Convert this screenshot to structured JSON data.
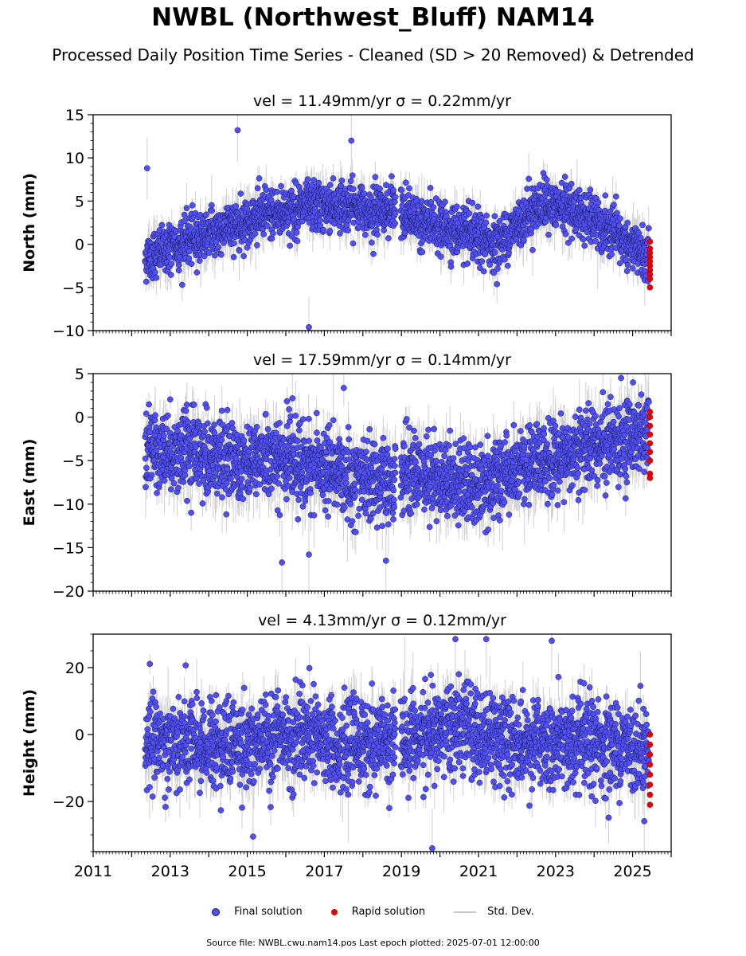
{
  "title": "NWBL (Northwest_Bluff) NAM14",
  "subtitle": "Processed Daily Position Time Series - Cleaned (SD > 20 Removed) & Detrended",
  "colors": {
    "final": "#4f4ff5",
    "final_edge": "#1a1a4a",
    "rapid": "#e80000",
    "stddev": "#bdbdbd"
  },
  "legend": {
    "final": "Final solution",
    "rapid": "Rapid solution",
    "stddev": "Std. Dev."
  },
  "footer": "Source file: NWBL.cwu.nam14.pos  Last epoch plotted: 2025-07-01 12:00:00",
  "chart_data": [
    {
      "type": "scatter",
      "panel": "north",
      "subtitle": "vel = 11.49mm/yr   σ = 0.22mm/yr",
      "ylabel": "North (mm)",
      "xlim": [
        2011,
        2026
      ],
      "ylim": [
        -10,
        15
      ],
      "yticks": [
        -10,
        -5,
        0,
        5,
        10,
        15
      ],
      "xticks": [
        2011,
        2013,
        2015,
        2017,
        2019,
        2021,
        2023,
        2025
      ],
      "series": [
        {
          "name": "Final solution",
          "x_start": 2012.35,
          "x_end": 2025.42,
          "gap": [
            2018.85,
            2018.98
          ],
          "trend": [
            [
              2012.35,
              -1.5
            ],
            [
              2013.5,
              0.5
            ],
            [
              2015.5,
              3.5
            ],
            [
              2017.0,
              4.5
            ],
            [
              2018.8,
              4.0
            ],
            [
              2019.0,
              3.5
            ],
            [
              2020.0,
              2.0
            ],
            [
              2021.5,
              0.0
            ],
            [
              2022.5,
              4.5
            ],
            [
              2023.5,
              4.0
            ],
            [
              2025.4,
              -1.5
            ]
          ],
          "scatter_sd": 1.4,
          "err_sd": 1.2,
          "outliers": [
            [
              2014.75,
              13.2
            ],
            [
              2016.6,
              -9.6
            ],
            [
              2017.7,
              12.0
            ],
            [
              2012.4,
              8.8
            ]
          ]
        },
        {
          "name": "Rapid solution",
          "x": 2025.45,
          "values": [
            0.3,
            -0.5,
            -1.0,
            -1.5,
            -2.0,
            -2.5,
            -3.0,
            -3.5,
            -4.0,
            -5.0
          ]
        }
      ]
    },
    {
      "type": "scatter",
      "panel": "east",
      "subtitle": "vel = 17.59mm/yr   σ = 0.14mm/yr",
      "ylabel": "East (mm)",
      "xlim": [
        2011,
        2026
      ],
      "ylim": [
        -20,
        5
      ],
      "yticks": [
        -20,
        -15,
        -10,
        -5,
        0,
        5
      ],
      "xticks": [
        2011,
        2013,
        2015,
        2017,
        2019,
        2021,
        2023,
        2025
      ],
      "series": [
        {
          "name": "Final solution",
          "x_start": 2012.35,
          "x_end": 2025.42,
          "gap": [
            2018.85,
            2018.98
          ],
          "trend": [
            [
              2012.35,
              -3.5
            ],
            [
              2014.0,
              -4.5
            ],
            [
              2016.0,
              -5.0
            ],
            [
              2017.5,
              -6.5
            ],
            [
              2018.8,
              -8.0
            ],
            [
              2019.0,
              -6.0
            ],
            [
              2020.0,
              -7.0
            ],
            [
              2021.0,
              -8.0
            ],
            [
              2022.5,
              -5.5
            ],
            [
              2024.0,
              -3.0
            ],
            [
              2025.4,
              -2.0
            ]
          ],
          "scatter_sd": 2.3,
          "err_sd": 1.6,
          "outliers": [
            [
              2015.9,
              -16.7
            ],
            [
              2016.6,
              -15.8
            ],
            [
              2018.6,
              -16.5
            ],
            [
              2024.7,
              4.5
            ]
          ]
        },
        {
          "name": "Rapid solution",
          "x": 2025.45,
          "values": [
            0.6,
            0.0,
            -1.0,
            -2.0,
            -3.0,
            -4.0,
            -5.0,
            -6.5,
            -7.0
          ]
        }
      ]
    },
    {
      "type": "scatter",
      "panel": "height",
      "subtitle": "vel = 4.13mm/yr   σ = 0.12mm/yr",
      "ylabel": "Height (mm)",
      "xlim": [
        2011,
        2026
      ],
      "ylim": [
        -35,
        30
      ],
      "yticks": [
        -20,
        0,
        20
      ],
      "xticks": [
        2011,
        2013,
        2015,
        2017,
        2019,
        2021,
        2023,
        2025
      ],
      "xticklabels": [
        "2011",
        "2013",
        "2015",
        "2017",
        "2019",
        "2021",
        "2023",
        "2025"
      ],
      "series": [
        {
          "name": "Final solution",
          "x_start": 2012.35,
          "x_end": 2025.42,
          "gap": [
            2018.85,
            2018.98
          ],
          "trend": [
            [
              2012.35,
              -2.0
            ],
            [
              2014.0,
              -3.0
            ],
            [
              2016.0,
              -1.0
            ],
            [
              2018.0,
              -3.0
            ],
            [
              2019.0,
              -2.0
            ],
            [
              2020.5,
              2.0
            ],
            [
              2022.0,
              -2.0
            ],
            [
              2024.0,
              -3.0
            ],
            [
              2025.4,
              -4.0
            ]
          ],
          "scatter_sd": 6.5,
          "err_sd": 4.0,
          "outliers": [
            [
              2019.8,
              -34.0
            ],
            [
              2020.4,
              28.5
            ],
            [
              2021.2,
              28.5
            ],
            [
              2022.9,
              28.0
            ],
            [
              2015.15,
              -30.5
            ]
          ]
        },
        {
          "name": "Rapid solution",
          "x": 2025.45,
          "values": [
            0.0,
            -3.0,
            -6.0,
            -9.0,
            -12.0,
            -15.0,
            -18.0,
            -21.0
          ]
        }
      ]
    }
  ]
}
